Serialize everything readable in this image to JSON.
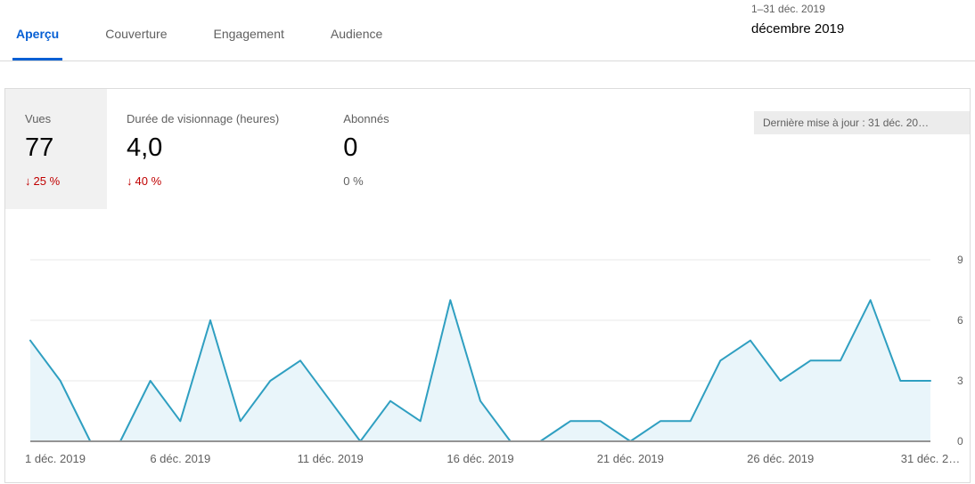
{
  "colors": {
    "accent_blue": "#065fd4",
    "negative_red": "#c00000",
    "chart_line": "#2f9fc1",
    "chart_fill": "#e9f5fa",
    "selected_metric_bg": "#f1f1f1"
  },
  "tabs": [
    {
      "label": "Aperçu",
      "active": true
    },
    {
      "label": "Couverture",
      "active": false
    },
    {
      "label": "Engagement",
      "active": false
    },
    {
      "label": "Audience",
      "active": false
    }
  ],
  "date_picker": {
    "range": "1–31 déc. 2019",
    "month": "décembre 2019"
  },
  "metrics": {
    "views": {
      "label": "Vues",
      "value": "77",
      "delta": "25 %",
      "trend": "down"
    },
    "watch_time": {
      "label": "Durée de visionnage (heures)",
      "value": "4,0",
      "delta": "40 %",
      "trend": "down"
    },
    "subscribers": {
      "label": "Abonnés",
      "value": "0",
      "delta": "0 %",
      "trend": "neutral"
    }
  },
  "icons": {
    "down_arrow": "↓"
  },
  "last_updated": "Dernière mise à jour : 31 déc. 20…",
  "chart_data": {
    "type": "area",
    "series": [
      {
        "name": "Vues",
        "values": [
          5,
          3,
          0,
          0,
          3,
          1,
          6,
          1,
          3,
          4,
          2,
          0,
          2,
          1,
          7,
          2,
          0,
          0,
          1,
          1,
          0,
          1,
          1,
          4,
          5,
          3,
          4,
          4,
          7,
          3,
          3
        ]
      }
    ],
    "x_tick_labels": [
      "1 déc. 2019",
      "6 déc. 2019",
      "11 déc. 2019",
      "16 déc. 2019",
      "21 déc. 2019",
      "26 déc. 2019",
      "31 déc. 2…"
    ],
    "x_tick_indices": [
      0,
      5,
      10,
      15,
      20,
      25,
      30
    ],
    "y_ticks": [
      0,
      3,
      6,
      9
    ],
    "ylim": [
      0,
      9
    ],
    "grid": true,
    "y_axis_position": "right",
    "line_color": "#2f9fc1",
    "fill_color": "#e9f5fa"
  }
}
